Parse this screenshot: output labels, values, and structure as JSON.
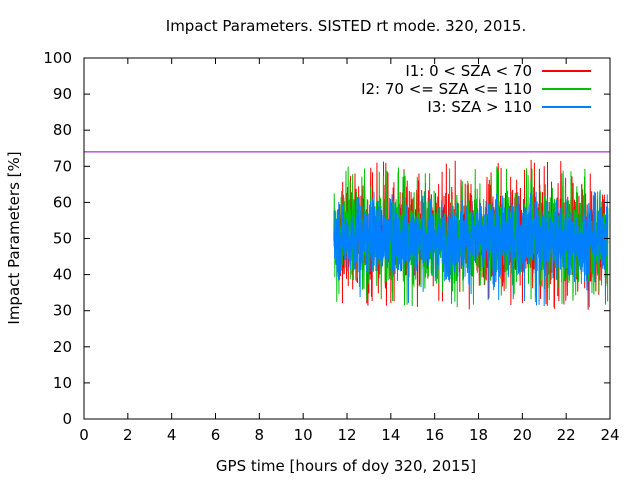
{
  "chart_data": {
    "type": "line",
    "title": "Impact Parameters. SISTED rt mode. 320, 2015.",
    "xlabel": "GPS time [hours of doy 320, 2015]",
    "ylabel": "Impact Parameters [%]",
    "xlim": [
      0,
      24
    ],
    "ylim": [
      0,
      100
    ],
    "xticks": [
      0,
      2,
      4,
      6,
      8,
      10,
      12,
      14,
      16,
      18,
      20,
      22,
      24
    ],
    "yticks": [
      0,
      10,
      20,
      30,
      40,
      50,
      60,
      70,
      80,
      90,
      100
    ],
    "grid": false,
    "legend_position": "top-right",
    "threshold": {
      "y": 74,
      "color": "#9400d3"
    },
    "series": [
      {
        "name": "I1: 0 < SZA < 70",
        "color": "#ff0000",
        "x_range": [
          11.6,
          23.9
        ],
        "center": 51,
        "min": 30,
        "max": 72
      },
      {
        "name": "I2: 70 <= SZA <= 110",
        "color": "#00c000",
        "x_range": [
          11.4,
          23.9
        ],
        "center": 50,
        "min": 31,
        "max": 70
      },
      {
        "name": "I3: SZA > 110",
        "color": "#0080ff",
        "x_range": [
          11.4,
          23.9
        ],
        "center": 50,
        "min": 31,
        "max": 63
      }
    ]
  }
}
